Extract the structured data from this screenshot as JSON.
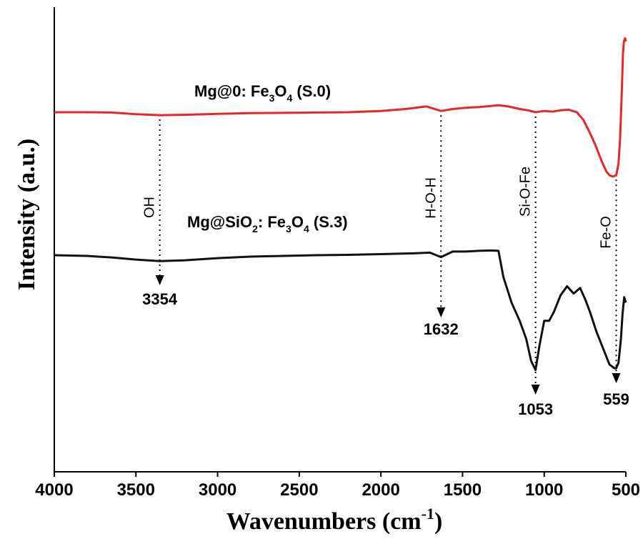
{
  "chart_data": {
    "type": "line",
    "xlabel": "Wavenumbers (cm",
    "xlabel_sup": "-1",
    "xlabel_close": ")",
    "ylabel": "Intensity (a.u.)",
    "xlim": [
      4000,
      500
    ],
    "x_reversed": true,
    "x_ticks": [
      4000,
      3500,
      3000,
      2500,
      2000,
      1500,
      1000,
      500
    ],
    "y_ticks_shown": false,
    "grid": false,
    "colors": {
      "s0": "#e8262a",
      "s3": "#111111",
      "axis": "#000000"
    },
    "series": [
      {
        "id": "s0",
        "label_parts": {
          "a": "Mg@0: Fe",
          "b": "3",
          "c": "O",
          "d": "4",
          "e": " (S.0)"
        },
        "color": "#e8262a",
        "x": [
          4000,
          3800,
          3650,
          3500,
          3354,
          3200,
          3000,
          2800,
          2600,
          2400,
          2200,
          2000,
          1850,
          1720,
          1632,
          1560,
          1480,
          1400,
          1330,
          1280,
          1220,
          1150,
          1100,
          1053,
          1000,
          950,
          900,
          850,
          800,
          760,
          720,
          680,
          650,
          620,
          600,
          580,
          559,
          545,
          535,
          525,
          518,
          512,
          505,
          500
        ],
        "y": [
          0.0,
          0.0,
          -0.005,
          -0.03,
          -0.045,
          -0.04,
          -0.025,
          -0.015,
          -0.01,
          -0.005,
          0.0,
          0.02,
          0.05,
          0.09,
          0.02,
          0.05,
          0.07,
          0.08,
          0.095,
          0.11,
          0.09,
          0.05,
          0.03,
          0.0,
          0.02,
          0.01,
          0.03,
          0.04,
          0.0,
          -0.12,
          -0.32,
          -0.55,
          -0.75,
          -0.92,
          -0.98,
          -1.0,
          -0.98,
          -0.8,
          -0.4,
          0.3,
          0.9,
          1.1,
          1.15,
          1.1
        ]
      },
      {
        "id": "s3",
        "label_parts": {
          "a": "Mg@SiO",
          "b": "2",
          "c": ": Fe",
          "d": "3",
          "e": "O",
          "f": "4",
          "g": " (S.3)"
        },
        "color": "#111111",
        "x": [
          4000,
          3800,
          3650,
          3500,
          3354,
          3200,
          3000,
          2800,
          2600,
          2400,
          2200,
          2000,
          1800,
          1700,
          1632,
          1560,
          1480,
          1400,
          1330,
          1280,
          1250,
          1200,
          1150,
          1110,
          1080,
          1053,
          1030,
          1000,
          970,
          940,
          900,
          860,
          820,
          780,
          750,
          720,
          680,
          640,
          600,
          570,
          559,
          545,
          530,
          520,
          510,
          500
        ],
        "y": [
          0.0,
          -0.02,
          -0.06,
          -0.12,
          -0.16,
          -0.14,
          -0.08,
          -0.04,
          -0.02,
          0.0,
          0.01,
          0.03,
          0.05,
          0.07,
          -0.05,
          0.1,
          0.1,
          0.12,
          0.13,
          0.12,
          -0.6,
          -1.3,
          -1.8,
          -2.3,
          -2.9,
          -3.15,
          -2.5,
          -1.8,
          -1.8,
          -1.55,
          -1.1,
          -0.85,
          -1.05,
          -0.9,
          -1.2,
          -1.55,
          -2.1,
          -2.55,
          -3.0,
          -3.1,
          -3.1,
          -2.95,
          -2.3,
          -1.6,
          -1.15,
          -1.3
        ]
      }
    ],
    "annotations": [
      {
        "x": 3354,
        "label": "OH",
        "value": "3354"
      },
      {
        "x": 1632,
        "label": "H-O-H",
        "value": "1632"
      },
      {
        "x": 1053,
        "label": "Si-O-Fe",
        "value": "1053"
      },
      {
        "x": 559,
        "label": "Fe-O",
        "value": "559"
      }
    ]
  }
}
